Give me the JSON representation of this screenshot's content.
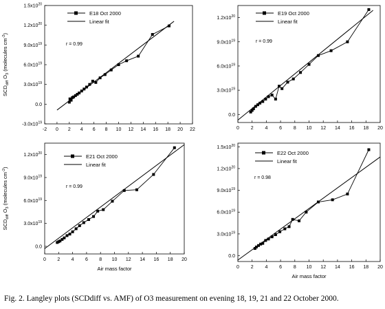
{
  "caption": "Fig. 2. Langley plots (SCDdiff vs. AMF) of O3 measurement on evening 18, 19, 21 and 22 October 2000.",
  "chart_data": [
    {
      "type": "line",
      "legend": [
        "E18 Oct 2000",
        "Linear fit"
      ],
      "legend_position": "top-right",
      "r_label": "r = 0.99",
      "ylabel": "SCDdiff O3 (molecules cm-2)",
      "xlabel": "",
      "xlim": [
        -2,
        22
      ],
      "ylim": [
        -3e+19,
        1.5e+20
      ],
      "x_ticks": [
        "-2",
        "0",
        "2",
        "4",
        "6",
        "8",
        "10",
        "12",
        "14",
        "16",
        "18",
        "20",
        "22"
      ],
      "y_ticks": [
        "-3.0x10^19",
        "0.0",
        "3.0x10^19",
        "6.0x10^19",
        "9.0x10^19",
        "1.2x10^20",
        "1.5x10^20"
      ],
      "x": [
        2.0,
        2.1,
        2.3,
        2.5,
        2.7,
        3.0,
        3.3,
        3.6,
        4.0,
        4.4,
        4.8,
        5.3,
        5.8,
        6.3,
        7.0,
        7.8,
        8.8,
        10.0,
        11.3,
        13.2,
        15.5,
        18.2
      ],
      "values": [
        3e+18,
        8e+18,
        6e+18,
        1e+19,
        1.1e+19,
        1.3e+19,
        1.5e+19,
        1.7e+19,
        2e+19,
        2.3e+19,
        2.6e+19,
        3e+19,
        3.5e+19,
        3.3e+19,
        4e+19,
        4.5e+19,
        5.2e+19,
        6e+19,
        6.6e+19,
        7.3e+19,
        1.06e+20,
        1.19e+20
      ],
      "fit": [
        [
          0,
          -9e+18
        ],
        [
          19,
          1.26e+20
        ]
      ]
    },
    {
      "type": "line",
      "legend": [
        "E19 Oct 2000",
        "Linear fit"
      ],
      "legend_position": "top-right",
      "r_label": "r = 0.99",
      "ylabel": "",
      "xlabel": "",
      "xlim": [
        0,
        20
      ],
      "ylim": [
        -1e+19,
        1.35e+20
      ],
      "x_ticks": [
        "0",
        "2",
        "4",
        "6",
        "8",
        "10",
        "12",
        "14",
        "16",
        "18",
        "20"
      ],
      "y_ticks": [
        "0.0",
        "3.0x10^19",
        "6.0x10^19",
        "9.0x10^19",
        "1.2x10^20"
      ],
      "x": [
        1.8,
        2.0,
        2.2,
        2.5,
        2.8,
        3.1,
        3.5,
        3.9,
        4.3,
        4.8,
        5.3,
        5.8,
        6.2,
        7.0,
        7.8,
        8.8,
        10.0,
        11.3,
        13.1,
        15.4,
        18.4
      ],
      "values": [
        3e+18,
        5e+18,
        7e+18,
        1e+19,
        1.2e+19,
        1.4e+19,
        1.6e+19,
        1.9e+19,
        2.2e+19,
        2.4e+19,
        1.9e+19,
        3.5e+19,
        3.2e+19,
        4e+19,
        4.4e+19,
        5.2e+19,
        6.2e+19,
        7.3e+19,
        7.9e+19,
        9e+19,
        1.3e+20
      ],
      "fit": [
        [
          0,
          -7e+18
        ],
        [
          19,
          1.29e+20
        ]
      ]
    },
    {
      "type": "line",
      "legend": [
        "E21 Oct 2000",
        "Linear fit"
      ],
      "legend_position": "top-left",
      "r_label": "r = 0.99",
      "ylabel": "SCDdiff O3 (molecules cm-2)",
      "xlabel": "Air mass factor",
      "xlim": [
        0,
        20
      ],
      "ylim": [
        -1e+19,
        1.35e+20
      ],
      "x_ticks": [
        "0",
        "2",
        "4",
        "6",
        "8",
        "10",
        "12",
        "14",
        "16",
        "18",
        "20"
      ],
      "y_ticks": [
        "0.0",
        "3.0x10^19",
        "6.0x10^19",
        "9.0x10^19",
        "1.2x10^20"
      ],
      "x": [
        1.8,
        2.0,
        2.2,
        2.5,
        2.8,
        3.2,
        3.6,
        4.0,
        4.5,
        5.0,
        5.6,
        6.3,
        7.0,
        7.6,
        8.4,
        9.7,
        11.4,
        13.2,
        15.6,
        18.6
      ],
      "values": [
        5e+18,
        6e+18,
        7e+18,
        9e+18,
        1.1e+19,
        1.4e+19,
        1.6e+19,
        1.9e+19,
        2.3e+19,
        2.7e+19,
        3.1e+19,
        3.5e+19,
        3.9e+19,
        4.6e+19,
        4.8e+19,
        5.9e+19,
        7.3e+19,
        7.4e+19,
        9.4e+19,
        1.29e+20
      ],
      "fit": [
        [
          0,
          -3e+18
        ],
        [
          20,
          1.33e+20
        ]
      ]
    },
    {
      "type": "line",
      "legend": [
        "E22 Oct 2000",
        "Linear fit"
      ],
      "legend_position": "top-right",
      "r_label": "r = 0.98",
      "ylabel": "",
      "xlabel": "Air mass factor",
      "xlim": [
        0,
        20
      ],
      "ylim": [
        -8e+18,
        1.55e+20
      ],
      "x_ticks": [
        "0",
        "2",
        "4",
        "6",
        "8",
        "10",
        "12",
        "14",
        "16",
        "18",
        "20"
      ],
      "y_ticks": [
        "0.0",
        "3.0x10^19",
        "6.0x10^19",
        "9.0x10^19",
        "1.2x10^20",
        "1.5x10^20"
      ],
      "x": [
        2.4,
        2.6,
        2.9,
        3.2,
        3.5,
        3.9,
        4.3,
        4.8,
        5.3,
        5.9,
        6.6,
        7.2,
        7.7,
        8.6,
        9.6,
        11.3,
        13.3,
        15.4,
        18.4
      ],
      "values": [
        1e+19,
        1.2e+19,
        1.4e+19,
        1.6e+19,
        1.7e+19,
        2.1e+19,
        2.3e+19,
        2.6e+19,
        2.9e+19,
        3.3e+19,
        3.7e+19,
        4e+19,
        5e+19,
        4.8e+19,
        6e+19,
        7.4e+19,
        7.7e+19,
        8.5e+19,
        1.46e+20
      ],
      "fit": [
        [
          0,
          -6e+18
        ],
        [
          20,
          1.36e+20
        ]
      ]
    }
  ]
}
